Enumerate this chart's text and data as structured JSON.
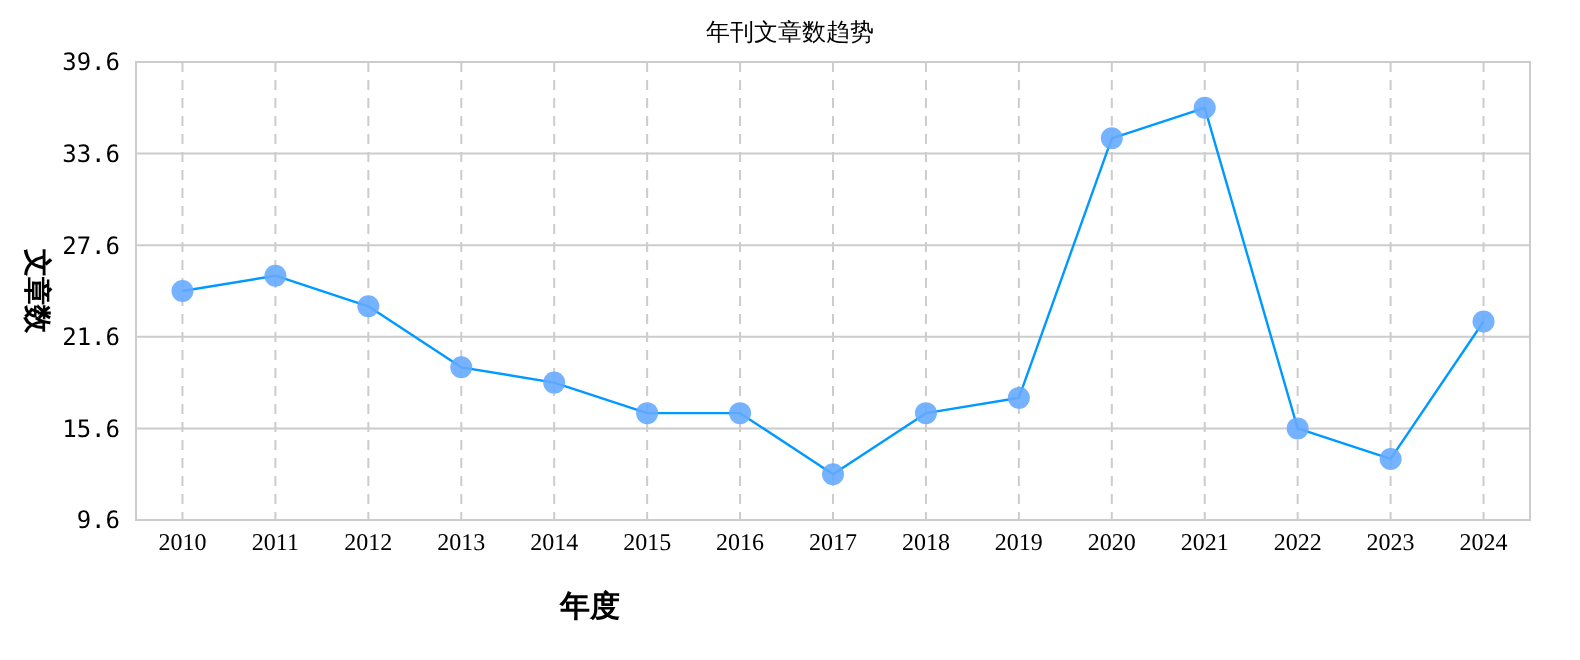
{
  "chart_data": {
    "type": "line",
    "title": "年刊文章数趋势",
    "xlabel": "年度",
    "ylabel": "文章数",
    "categories": [
      "2010",
      "2011",
      "2012",
      "2013",
      "2014",
      "2015",
      "2016",
      "2017",
      "2018",
      "2019",
      "2020",
      "2021",
      "2022",
      "2023",
      "2024"
    ],
    "series": [
      {
        "color": "#0099ff",
        "values": [
          24.6,
          25.6,
          23.6,
          19.6,
          18.6,
          16.6,
          16.6,
          12.6,
          16.6,
          17.6,
          34.6,
          36.6,
          15.6,
          13.6,
          22.6
        ]
      }
    ],
    "ylim": [
      9.6,
      39.6
    ],
    "yticks": [
      9.6,
      15.6,
      21.6,
      27.6,
      33.6,
      39.6
    ],
    "grid": true,
    "marker": "circle"
  }
}
